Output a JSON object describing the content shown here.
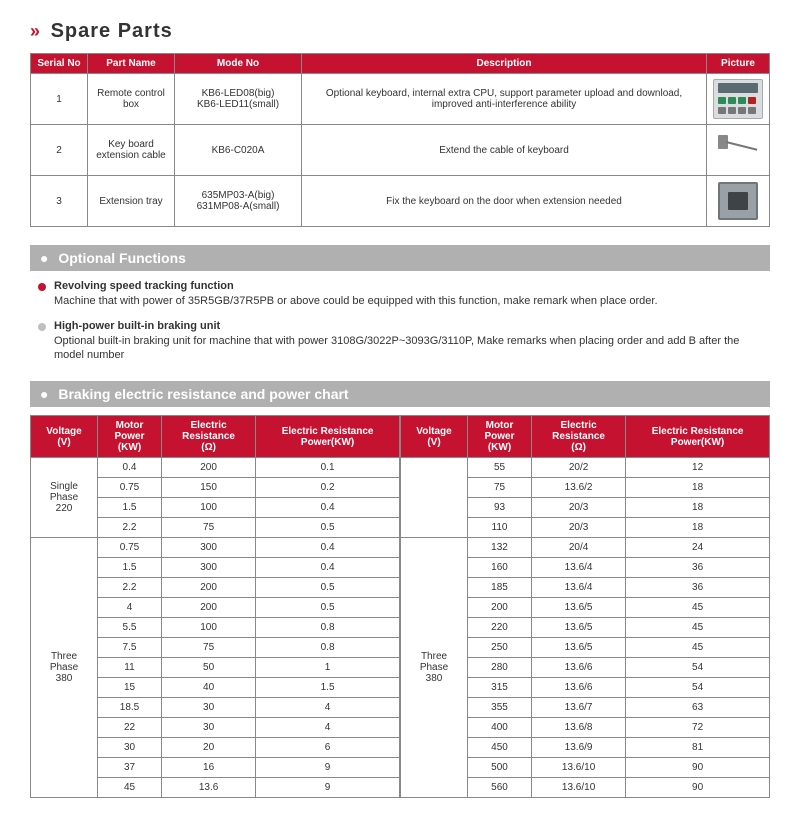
{
  "mainHeading": "Spare Parts",
  "spareCols": [
    "Serial No",
    "Part Name",
    "Mode No",
    "Description",
    "Picture"
  ],
  "spareRows": [
    {
      "sn": "1",
      "name": "Remote control box",
      "mode": "KB6-LED08(big)\nKB6-LED11(small)",
      "desc": "Optional keyboard, internal extra CPU, support parameter upload and download, improved anti-interference ability"
    },
    {
      "sn": "2",
      "name": "Key board extension cable",
      "mode": "KB6-C020A",
      "desc": "Extend the cable of keyboard"
    },
    {
      "sn": "3",
      "name": "Extension tray",
      "mode": "635MP03-A(big)\n631MP08-A(small)",
      "desc": "Fix the keyboard on the door when extension needed"
    }
  ],
  "sectionOptional": "Optional Functions",
  "optItems": [
    {
      "color": "#c41230",
      "title": "Revolving speed tracking function",
      "desc": "Machine that with power of 35R5GB/37R5PB or above could be equipped with this function, make remark when place order."
    },
    {
      "color": "#bfbfbf",
      "title": "High-power built-in braking unit",
      "desc": "Optional built-in braking unit for machine that with power 3108G/3022P~3093G/3110P, Make remarks when placing order and add B after the model number"
    }
  ],
  "sectionBraking": "Braking electric resistance and power chart",
  "brakingCols": [
    "Voltage (V)",
    "Motor Power (KW)",
    "Electric Resistance (Ω)",
    "Electric Resistance Power(KW)"
  ],
  "leftGroups": [
    {
      "label": "Single Phase 220",
      "rows": [
        [
          "0.4",
          "200",
          "0.1"
        ],
        [
          "0.75",
          "150",
          "0.2"
        ],
        [
          "1.5",
          "100",
          "0.4"
        ],
        [
          "2.2",
          "75",
          "0.5"
        ]
      ]
    },
    {
      "label": "Three Phase 380",
      "rows": [
        [
          "0.75",
          "300",
          "0.4"
        ],
        [
          "1.5",
          "300",
          "0.4"
        ],
        [
          "2.2",
          "200",
          "0.5"
        ],
        [
          "4",
          "200",
          "0.5"
        ],
        [
          "5.5",
          "100",
          "0.8"
        ],
        [
          "7.5",
          "75",
          "0.8"
        ],
        [
          "11",
          "50",
          "1"
        ],
        [
          "15",
          "40",
          "1.5"
        ],
        [
          "18.5",
          "30",
          "4"
        ],
        [
          "22",
          "30",
          "4"
        ],
        [
          "30",
          "20",
          "6"
        ],
        [
          "37",
          "16",
          "9"
        ],
        [
          "45",
          "13.6",
          "9"
        ]
      ]
    }
  ],
  "rightGroup": {
    "label": "Three Phase 380",
    "leading": 4,
    "rows": [
      [
        "55",
        "20/2",
        "12"
      ],
      [
        "75",
        "13.6/2",
        "18"
      ],
      [
        "93",
        "20/3",
        "18"
      ],
      [
        "110",
        "20/3",
        "18"
      ],
      [
        "132",
        "20/4",
        "24"
      ],
      [
        "160",
        "13.6/4",
        "36"
      ],
      [
        "185",
        "13.6/4",
        "36"
      ],
      [
        "200",
        "13.6/5",
        "45"
      ],
      [
        "220",
        "13.6/5",
        "45"
      ],
      [
        "250",
        "13.6/5",
        "45"
      ],
      [
        "280",
        "13.6/6",
        "54"
      ],
      [
        "315",
        "13.6/6",
        "54"
      ],
      [
        "355",
        "13.6/7",
        "63"
      ],
      [
        "400",
        "13.6/8",
        "72"
      ],
      [
        "450",
        "13.6/9",
        "81"
      ],
      [
        "500",
        "13.6/10",
        "90"
      ],
      [
        "560",
        "13.6/10",
        "90"
      ]
    ]
  },
  "colors": {
    "headerBg": "#c41230",
    "barBg": "#b0b0b0"
  }
}
